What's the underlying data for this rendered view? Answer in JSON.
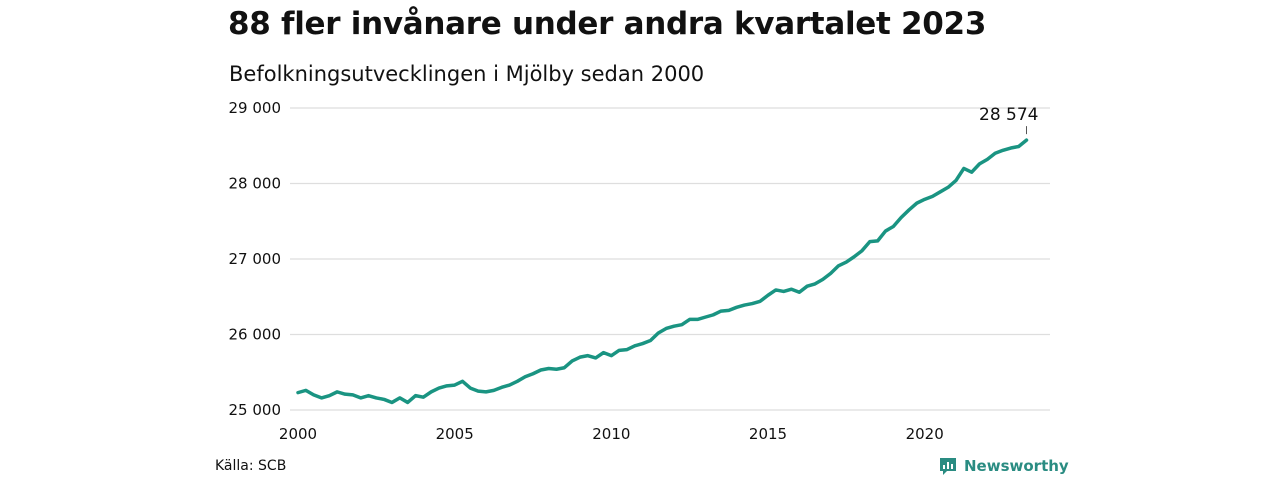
{
  "title": "88 fler invånare under andra kvartalet 2023",
  "subtitle": "Befolkningsutvecklingen i Mjölby sedan 2000",
  "source": "Källa: SCB",
  "brand": "Newsworthy",
  "colors": {
    "line": "#1a9482",
    "grid": "#dedede",
    "brand": "#2a8c82"
  },
  "chart_data": {
    "type": "line",
    "title": "88 fler invånare under andra kvartalet 2023",
    "subtitle": "Befolkningsutvecklingen i Mjölby sedan 2000",
    "xlabel": "",
    "ylabel": "",
    "xlim": [
      2000,
      2024
    ],
    "ylim": [
      25000,
      29000
    ],
    "grid": "horizontal",
    "y_ticks": [
      25000,
      26000,
      27000,
      28000,
      29000
    ],
    "y_tick_labels": [
      "25 000",
      "26 000",
      "27 000",
      "28 000",
      "29 000"
    ],
    "x_ticks": [
      2000,
      2005,
      2010,
      2015,
      2020
    ],
    "x_tick_labels": [
      "2000",
      "2005",
      "2010",
      "2015",
      "2020"
    ],
    "end_label": "28 574",
    "series": [
      {
        "x": [
          2000.0,
          2000.25,
          2000.5,
          2000.75,
          2001.0,
          2001.25,
          2001.5,
          2001.75,
          2002.0,
          2002.25,
          2002.5,
          2002.75,
          2003.0,
          2003.25,
          2003.5,
          2003.75,
          2004.0,
          2004.25,
          2004.5,
          2004.75,
          2005.0,
          2005.25,
          2005.5,
          2005.75,
          2006.0,
          2006.25,
          2006.5,
          2006.75,
          2007.0,
          2007.25,
          2007.5,
          2007.75,
          2008.0,
          2008.25,
          2008.5,
          2008.75,
          2009.0,
          2009.25,
          2009.5,
          2009.75,
          2010.0,
          2010.25,
          2010.5,
          2010.75,
          2011.0,
          2011.25,
          2011.5,
          2011.75,
          2012.0,
          2012.25,
          2012.5,
          2012.75,
          2013.0,
          2013.25,
          2013.5,
          2013.75,
          2014.0,
          2014.25,
          2014.5,
          2014.75,
          2015.0,
          2015.25,
          2015.5,
          2015.75,
          2016.0,
          2016.25,
          2016.5,
          2016.75,
          2017.0,
          2017.25,
          2017.5,
          2017.75,
          2018.0,
          2018.25,
          2018.5,
          2018.75,
          2019.0,
          2019.25,
          2019.5,
          2019.75,
          2020.0,
          2020.25,
          2020.5,
          2020.75,
          2021.0,
          2021.25,
          2021.5,
          2021.75,
          2022.0,
          2022.25,
          2022.5,
          2022.75,
          2023.0,
          2023.25
        ],
        "values": [
          25230,
          25260,
          25200,
          25160,
          25190,
          25240,
          25210,
          25200,
          25160,
          25190,
          25160,
          25140,
          25100,
          25160,
          25100,
          25190,
          25170,
          25240,
          25290,
          25320,
          25330,
          25380,
          25290,
          25250,
          25240,
          25260,
          25300,
          25330,
          25380,
          25440,
          25480,
          25530,
          25550,
          25540,
          25560,
          25650,
          25700,
          25720,
          25690,
          25760,
          25720,
          25790,
          25800,
          25850,
          25880,
          25920,
          26020,
          26080,
          26110,
          26130,
          26200,
          26200,
          26230,
          26260,
          26310,
          26320,
          26360,
          26390,
          26410,
          26440,
          26520,
          26590,
          26570,
          26600,
          26560,
          26640,
          26670,
          26730,
          26810,
          26910,
          26960,
          27030,
          27110,
          27230,
          27240,
          27370,
          27430,
          27550,
          27650,
          27740,
          27790,
          27830,
          27890,
          27950,
          28040,
          28200,
          28150,
          28260,
          28320,
          28400,
          28440,
          28470,
          28490,
          28574
        ]
      }
    ]
  }
}
